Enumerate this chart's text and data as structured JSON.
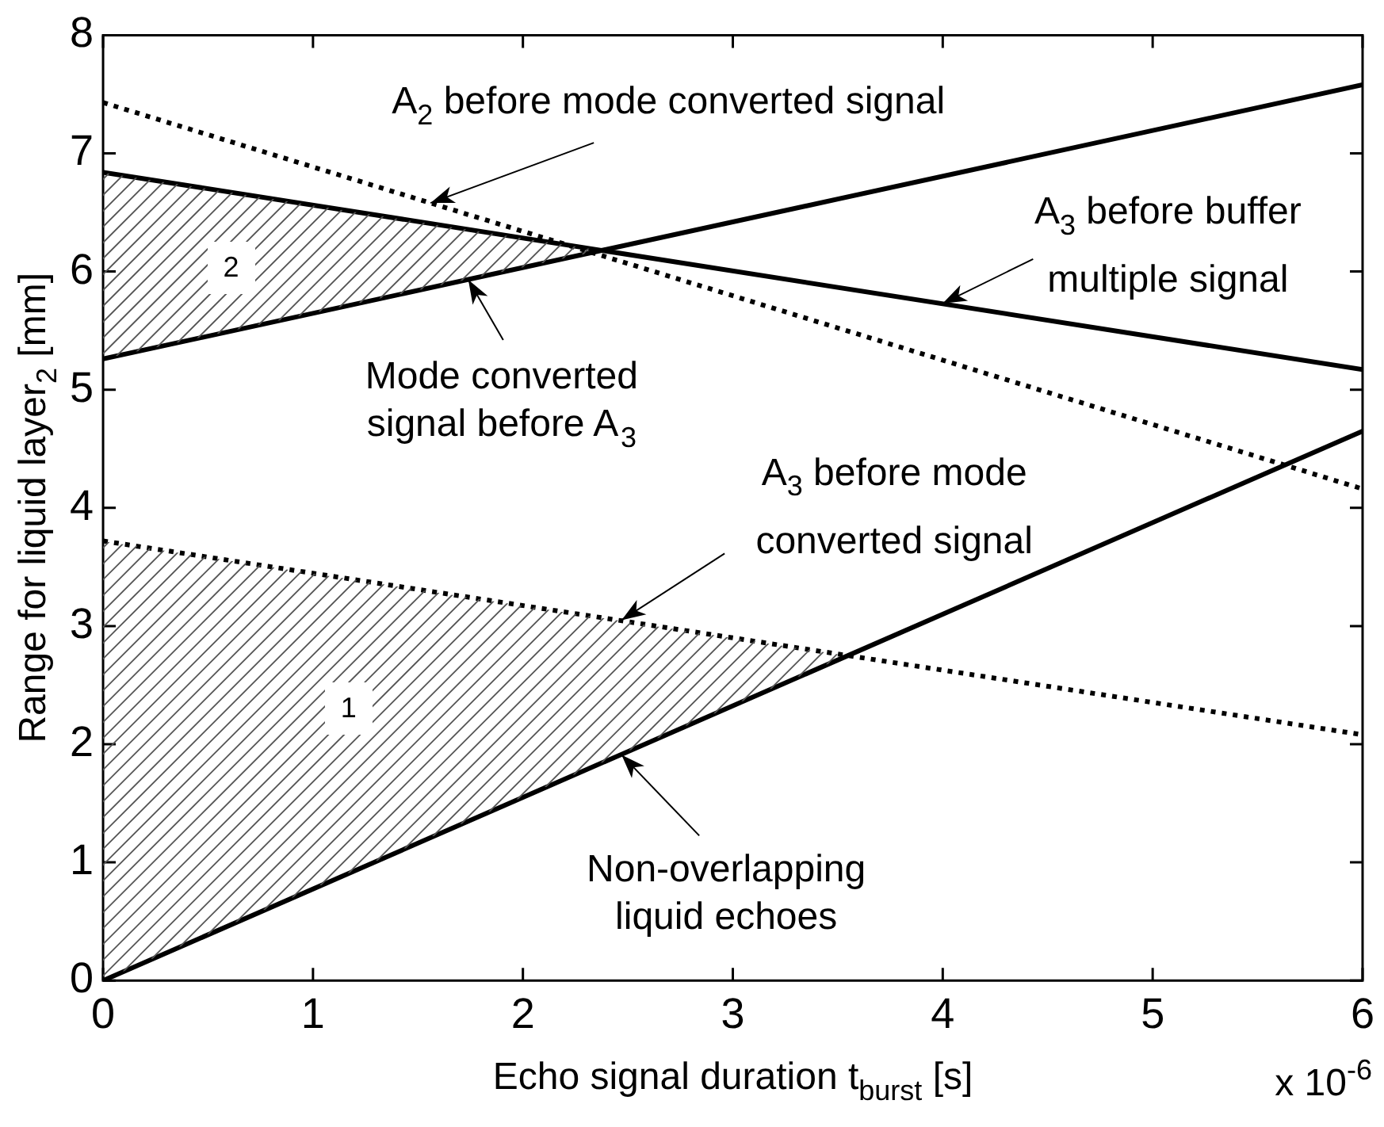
{
  "chart_data": {
    "type": "line",
    "xlabel": "Echo signal duration t$_{burst}$ [s]",
    "ylabel": "Range for liquid layer$_{2}$ [mm]",
    "xlim": [
      0,
      6
    ],
    "xticks": [
      0,
      1,
      2,
      3,
      4,
      5,
      6
    ],
    "ylim": [
      0,
      8
    ],
    "yticks": [
      0,
      1,
      2,
      3,
      4,
      5,
      6,
      7,
      8
    ],
    "grid": false,
    "legend": false,
    "marker": "none",
    "x": [
      0,
      6
    ],
    "series": [
      {
        "color": "#000000",
        "values": [
          0,
          4.65
        ],
        "line_style": "solid"
      },
      {
        "color": "#000000",
        "values": [
          5.26,
          7.58
        ],
        "line_style": "solid"
      },
      {
        "color": "#000000",
        "values": [
          6.84,
          5.17
        ],
        "line_style": "solid"
      },
      {
        "color": "#000000",
        "values": [
          7.43,
          4.16
        ],
        "line_style": "dotted"
      },
      {
        "color": "#000000",
        "values": [
          3.72,
          2.08
        ],
        "line_style": "dotted"
      }
    ],
    "annotations": [
      {
        "text": "A$_{2}$ before mode converted signal",
        "x": 1.56,
        "y": 6.58
      },
      {
        "text": "A$_{3}$ before buffer\nmultiple signal",
        "x": 4.0,
        "y": 5.73
      },
      {
        "text": "Mode converted\nsignal before A$_{3}$",
        "x": 1.74,
        "y": 5.93
      },
      {
        "text": "A$_{3}$ before mode\nconverted signal",
        "x": 2.47,
        "y": 3.05
      },
      {
        "text": "Non-overlapping\nliquid echoes",
        "x": 2.47,
        "y": 1.91
      },
      {
        "text": "1",
        "x": 1.17,
        "y": 2.3
      },
      {
        "text": "2",
        "x": 0.61,
        "y": 6.03
      },
      "x 10$^{-6}$"
    ]
  }
}
